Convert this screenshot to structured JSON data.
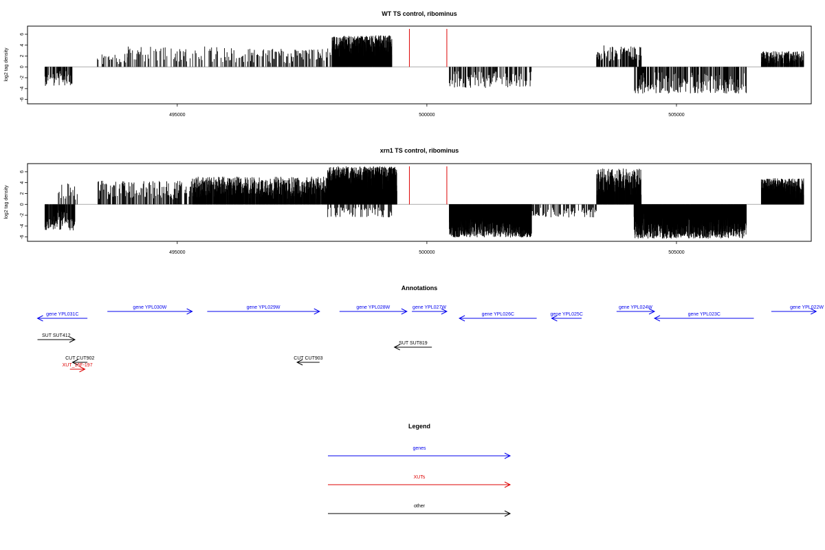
{
  "figure": {
    "annotations_title": "Annotations",
    "legend_title": "Legend"
  },
  "chart_data": [
    {
      "type": "bar",
      "title": "WT TS control, ribominus",
      "xlabel": "",
      "ylabel": "log2 tag density",
      "xlim": [
        492000,
        507700
      ],
      "ylim": [
        -6.8,
        7.5
      ],
      "yticks": [
        -6,
        -4,
        -2,
        0,
        2,
        4,
        6
      ],
      "xticks": [
        495000,
        500000,
        505000
      ],
      "xtick_labels": [
        "495000",
        "500000",
        "505000"
      ],
      "marker_positions": [
        499650,
        500400
      ],
      "marker_color": "#dd0000",
      "segments": [
        {
          "x0": 492350,
          "x1": 492900,
          "max": 3.5,
          "sign": -1,
          "dens": 1.6
        },
        {
          "x0": 493400,
          "x1": 494000,
          "max": 2.5,
          "sign": 1,
          "dens": 0.9
        },
        {
          "x0": 494000,
          "x1": 496300,
          "max": 3.8,
          "sign": 1,
          "dens": 0.8
        },
        {
          "x0": 496300,
          "x1": 498300,
          "max": 3.4,
          "sign": 1,
          "dens": 0.9
        },
        {
          "x0": 498100,
          "x1": 499300,
          "max": 5.8,
          "sign": 1,
          "dens": 6.0
        },
        {
          "x0": 500450,
          "x1": 502100,
          "max": 3.9,
          "sign": -1,
          "dens": 1.2
        },
        {
          "x0": 503400,
          "x1": 504300,
          "max": 4.0,
          "sign": 1,
          "dens": 1.4
        },
        {
          "x0": 504150,
          "x1": 506400,
          "max": 4.9,
          "sign": -1,
          "dens": 1.5
        },
        {
          "x0": 506700,
          "x1": 507550,
          "max": 2.9,
          "sign": 1,
          "dens": 2.5
        }
      ]
    },
    {
      "type": "bar",
      "title": "xrn1 TS control, ribominus",
      "xlabel": "",
      "ylabel": "log2 tag density",
      "xlim": [
        492000,
        507700
      ],
      "ylim": [
        -6.8,
        7.5
      ],
      "yticks": [
        -6,
        -4,
        -2,
        0,
        2,
        4,
        6
      ],
      "xticks": [
        495000,
        500000,
        505000
      ],
      "xtick_labels": [
        "495000",
        "500000",
        "505000"
      ],
      "marker_positions": [
        499650,
        500400
      ],
      "marker_color": "#dd0000",
      "segments": [
        {
          "x0": 492350,
          "x1": 492950,
          "max": 4.8,
          "sign": -1,
          "dens": 2.0
        },
        {
          "x0": 492600,
          "x1": 493000,
          "max": 3.9,
          "sign": 1,
          "dens": 0.8
        },
        {
          "x0": 493400,
          "x1": 495300,
          "max": 4.4,
          "sign": 1,
          "dens": 1.2
        },
        {
          "x0": 495300,
          "x1": 498000,
          "max": 5.1,
          "sign": 1,
          "dens": 2.8
        },
        {
          "x0": 498000,
          "x1": 499400,
          "max": 7.0,
          "sign": 1,
          "dens": 8.0
        },
        {
          "x0": 498000,
          "x1": 499300,
          "max": 2.4,
          "sign": -1,
          "dens": 1.0
        },
        {
          "x0": 500450,
          "x1": 502100,
          "max": 6.1,
          "sign": -1,
          "dens": 7.0
        },
        {
          "x0": 502100,
          "x1": 503400,
          "max": 2.4,
          "sign": -1,
          "dens": 1.0
        },
        {
          "x0": 503400,
          "x1": 504300,
          "max": 6.6,
          "sign": 1,
          "dens": 3.5
        },
        {
          "x0": 504150,
          "x1": 506400,
          "max": 6.3,
          "sign": -1,
          "dens": 6.0
        },
        {
          "x0": 506700,
          "x1": 507550,
          "max": 4.8,
          "sign": 1,
          "dens": 6.0
        }
      ]
    }
  ],
  "annotations": [
    {
      "label": "gene YPL031C",
      "start": 492200,
      "end": 493200,
      "strand": "-",
      "row": 2,
      "type": "genes"
    },
    {
      "label": "gene YPL030W",
      "start": 493600,
      "end": 495300,
      "strand": "+",
      "row": 1,
      "type": "genes"
    },
    {
      "label": "gene YPL029W",
      "start": 495600,
      "end": 497850,
      "strand": "+",
      "row": 1,
      "type": "genes"
    },
    {
      "label": "gene YPL028W",
      "start": 498250,
      "end": 499600,
      "strand": "+",
      "row": 1,
      "type": "genes"
    },
    {
      "label": "gene YPL027W",
      "start": 499700,
      "end": 500400,
      "strand": "+",
      "row": 1,
      "type": "genes"
    },
    {
      "label": "gene YPL026C",
      "start": 500650,
      "end": 502200,
      "strand": "-",
      "row": 2,
      "type": "genes"
    },
    {
      "label": "gene YPL025C",
      "start": 502500,
      "end": 503100,
      "strand": "-",
      "row": 2,
      "type": "genes"
    },
    {
      "label": "gene YPL024W",
      "start": 503800,
      "end": 504560,
      "strand": "+",
      "row": 1,
      "type": "genes"
    },
    {
      "label": "gene YPL023C",
      "start": 504560,
      "end": 506550,
      "strand": "-",
      "row": 2,
      "type": "genes"
    },
    {
      "label": "gene YPL022W",
      "start": 506900,
      "end": 507800,
      "strand": "+",
      "row": 1,
      "type": "genes"
    },
    {
      "label": "SUT SUT412",
      "start": 492200,
      "end": 492950,
      "strand": "+",
      "row": 3,
      "type": "other"
    },
    {
      "label": "SUT SUT819",
      "start": 499350,
      "end": 500100,
      "strand": "-",
      "row": 4,
      "type": "other"
    },
    {
      "label": "CUT CUT902",
      "start": 492900,
      "end": 493200,
      "strand": "-",
      "row": 5,
      "type": "other"
    },
    {
      "label": "CUT CUT903",
      "start": 497400,
      "end": 497850,
      "strand": "-",
      "row": 5,
      "type": "other"
    },
    {
      "label": "XUT_16F-197",
      "start": 492850,
      "end": 493150,
      "strand": "+",
      "row": 6,
      "type": "XUTs"
    }
  ],
  "legend": [
    {
      "label": "genes",
      "color": "#0000ee"
    },
    {
      "label": "XUTs",
      "color": "#dd0000"
    },
    {
      "label": "other",
      "color": "#000000"
    }
  ]
}
